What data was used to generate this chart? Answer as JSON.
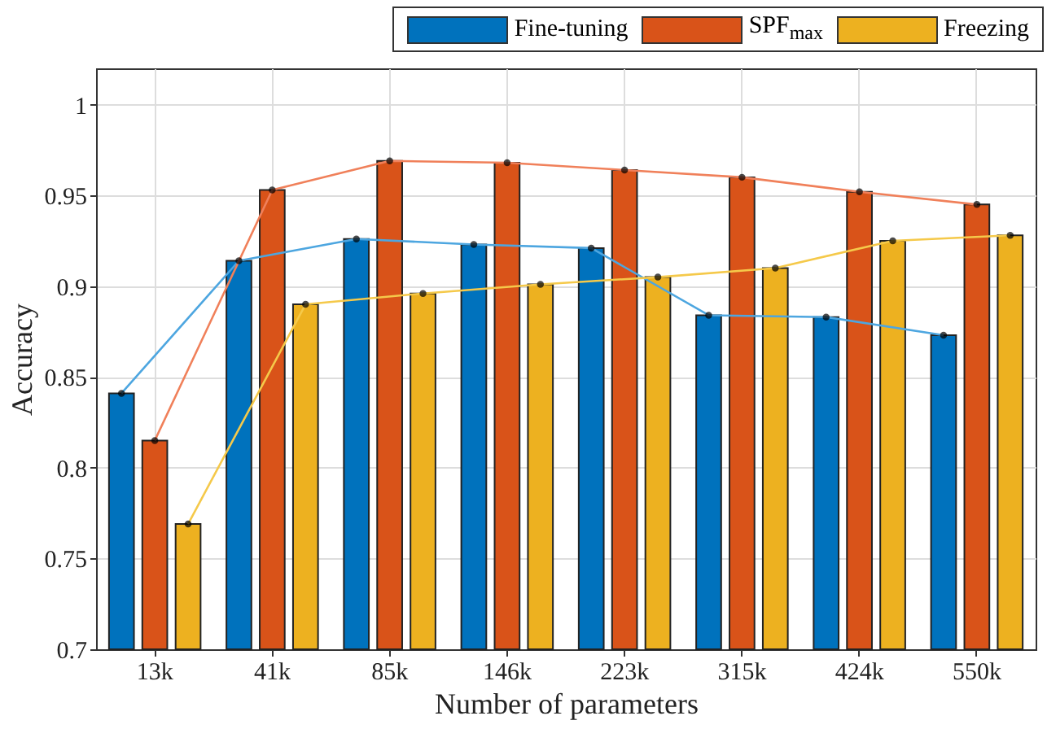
{
  "chart_data": {
    "type": "bar",
    "xlabel": "Number of parameters",
    "ylabel": "Accuracy",
    "categories": [
      "13k",
      "41k",
      "85k",
      "146k",
      "223k",
      "315k",
      "424k",
      "550k"
    ],
    "series": [
      {
        "name": "Fine-tuning",
        "color": "#0072bd",
        "values": [
          0.841,
          0.914,
          0.926,
          0.923,
          0.921,
          0.884,
          0.883,
          0.873
        ]
      },
      {
        "name": "SPF$_{max}$",
        "color": "#d95319",
        "values": [
          0.815,
          0.953,
          0.969,
          0.968,
          0.964,
          0.96,
          0.952,
          0.945
        ]
      },
      {
        "name": "Freezing",
        "color": "#edb120",
        "values": [
          0.769,
          0.89,
          0.896,
          0.901,
          0.905,
          0.91,
          0.925,
          0.928
        ]
      },
      {
        "type": "line",
        "color": "#4da6e0",
        "marker": "circle",
        "x": [
          "13k",
          "41k",
          "85k",
          "146k",
          "223k",
          "315k",
          "424k",
          "550k"
        ],
        "values": [
          0.841,
          0.914,
          0.926,
          0.923,
          0.921,
          0.884,
          0.883,
          0.873
        ]
      },
      {
        "type": "line",
        "color": "#f0805a",
        "marker": "circle",
        "x": [
          "13k",
          "41k",
          "85k",
          "146k",
          "223k",
          "315k",
          "424k",
          "550k"
        ],
        "values": [
          0.815,
          0.953,
          0.969,
          0.968,
          0.964,
          0.96,
          0.952,
          0.945
        ]
      },
      {
        "type": "line",
        "color": "#f5c94a",
        "marker": "circle",
        "x": [
          "13k",
          "41k",
          "85k",
          "146k",
          "223k",
          "315k",
          "424k",
          "550k"
        ],
        "values": [
          0.769,
          0.89,
          0.896,
          0.901,
          0.905,
          0.91,
          0.925,
          0.928
        ]
      }
    ],
    "ylim": [
      0.7,
      1.02
    ],
    "yticks": [
      {
        "value": 0.7,
        "label": "0.7"
      },
      {
        "value": 0.75,
        "label": "0.75"
      },
      {
        "value": 0.8,
        "label": "0.8"
      },
      {
        "value": 0.85,
        "label": "0.85"
      },
      {
        "value": 0.9,
        "label": "0.9"
      },
      {
        "value": 0.95,
        "label": "0.95"
      },
      {
        "value": 1,
        "label": "1"
      }
    ],
    "grid": true,
    "legend": "top right"
  }
}
